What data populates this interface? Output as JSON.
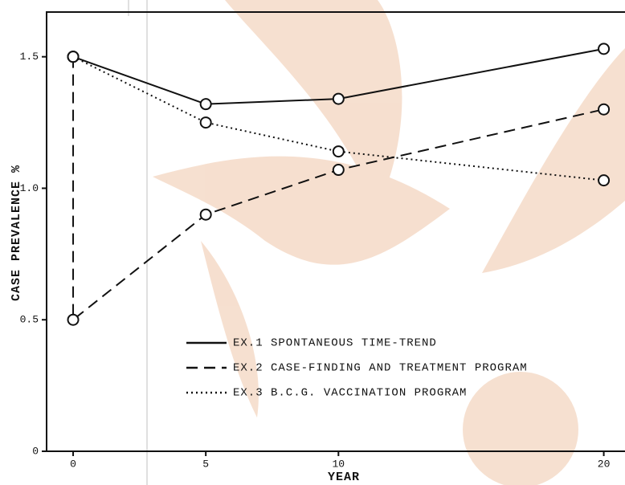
{
  "chart_data": {
    "type": "line",
    "xlabel": "YEAR",
    "ylabel": "CASE PREVALENCE %",
    "xlim": [
      -1,
      20.8
    ],
    "ylim": [
      0,
      1.67
    ],
    "xticks": [
      0,
      5,
      10,
      20
    ],
    "yticks": [
      0,
      0.5,
      {
        "value": 1,
        "label": "1.0"
      },
      1.5
    ],
    "legend": "lower-center",
    "series": [
      {
        "name": "EX.1 SPONTANEOUS TIME-TREND",
        "color": "#111111",
        "linestyle": "solid",
        "x": [
          0,
          5,
          10,
          20
        ],
        "values": [
          1.5,
          1.32,
          1.34,
          1.53
        ]
      },
      {
        "name": "EX.2 CASE-FINDING AND TREATMENT PROGRAM",
        "color": "#111111",
        "linestyle": "dashed",
        "x": [
          0,
          0,
          5,
          10,
          20
        ],
        "values": [
          1.5,
          0.5,
          0.9,
          1.07,
          1.3
        ]
      },
      {
        "name": "EX.3 B.C.G. VACCINATION PROGRAM",
        "color": "#111111",
        "linestyle": "dotted",
        "x": [
          0,
          5,
          10,
          20
        ],
        "values": [
          1.5,
          1.25,
          1.14,
          1.03
        ]
      }
    ]
  }
}
